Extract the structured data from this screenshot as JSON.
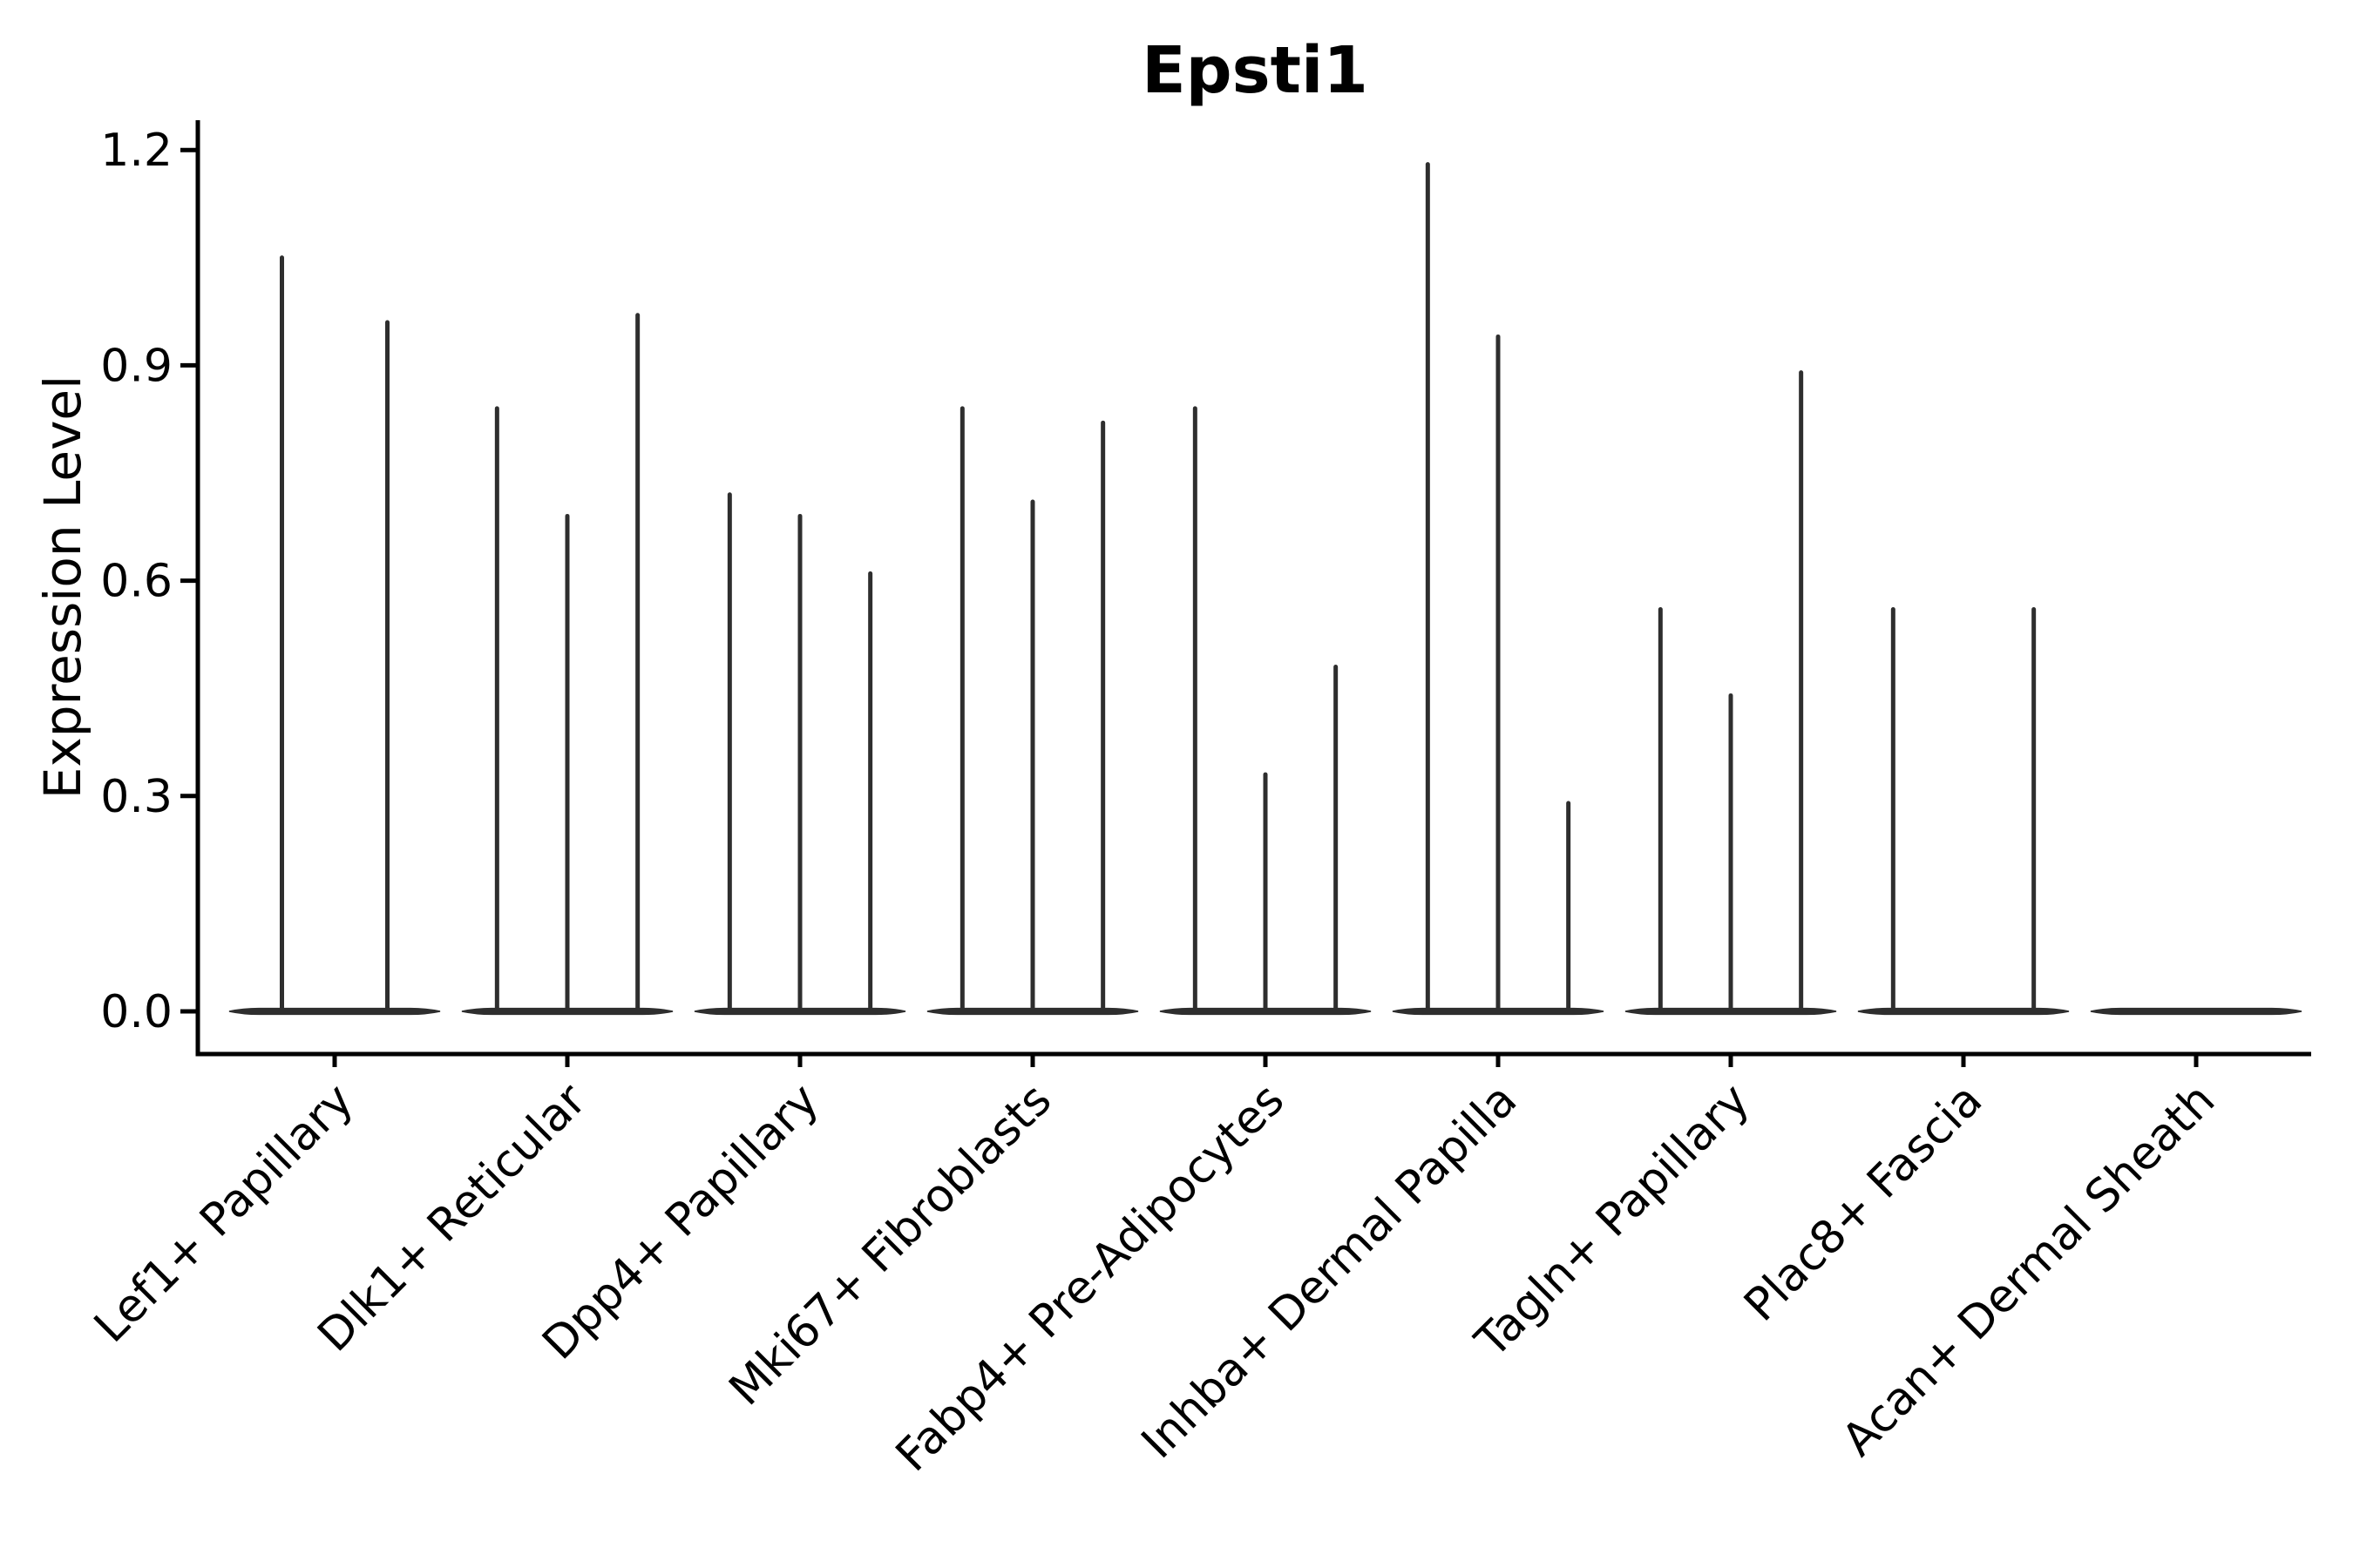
{
  "title": "Epsti1",
  "ylabel": "Expression Level",
  "chart_data": {
    "type": "violin",
    "title": "Epsti1",
    "xlabel": "",
    "ylabel": "Expression Level",
    "ylim": [
      0,
      1.25
    ],
    "yticks": [
      0.0,
      0.3,
      0.6,
      0.9,
      1.2
    ],
    "ytick_labels": [
      "0.0",
      "0.3",
      "0.6",
      "0.9",
      "1.2"
    ],
    "grid": false,
    "legend": "none",
    "xtick_rotation": 45,
    "categories": [
      "Lef1+ Papillary",
      "Dlk1+ Reticular",
      "Dpp4+ Papillary",
      "Mki67+ Fibroblasts",
      "Fabp4+ Pre-Adipocytes",
      "Inhba+ Dermal Papilla",
      "Tagln+ Papillary",
      "Plac8+ Fascia",
      "Acan+ Dermal Sheath"
    ],
    "series": [
      {
        "category": "Lef1+ Papillary",
        "violin_max_values": [
          1.05,
          0.96
        ]
      },
      {
        "category": "Dlk1+ Reticular",
        "violin_max_values": [
          0.84,
          0.69,
          0.97
        ]
      },
      {
        "category": "Dpp4+ Papillary",
        "violin_max_values": [
          0.72,
          0.69,
          0.61
        ]
      },
      {
        "category": "Mki67+ Fibroblasts",
        "violin_max_values": [
          0.84,
          0.71,
          0.82
        ]
      },
      {
        "category": "Fabp4+ Pre-Adipocytes",
        "violin_max_values": [
          0.84,
          0.33,
          0.48
        ]
      },
      {
        "category": "Inhba+ Dermal Papilla",
        "violin_max_values": [
          1.18,
          0.94,
          0.29
        ]
      },
      {
        "category": "Tagln+ Papillary",
        "violin_max_values": [
          0.56,
          0.44,
          0.89
        ]
      },
      {
        "category": "Plac8+ Fascia",
        "violin_max_values": [
          0.56,
          0.0,
          0.56
        ]
      },
      {
        "category": "Acan+ Dermal Sheath",
        "violin_max_values": [
          0.0,
          0.0,
          0.0
        ]
      }
    ],
    "colors": {
      "violin": "#2e2e2e",
      "axis": "#000000",
      "text": "#000000",
      "background": "#ffffff"
    }
  }
}
